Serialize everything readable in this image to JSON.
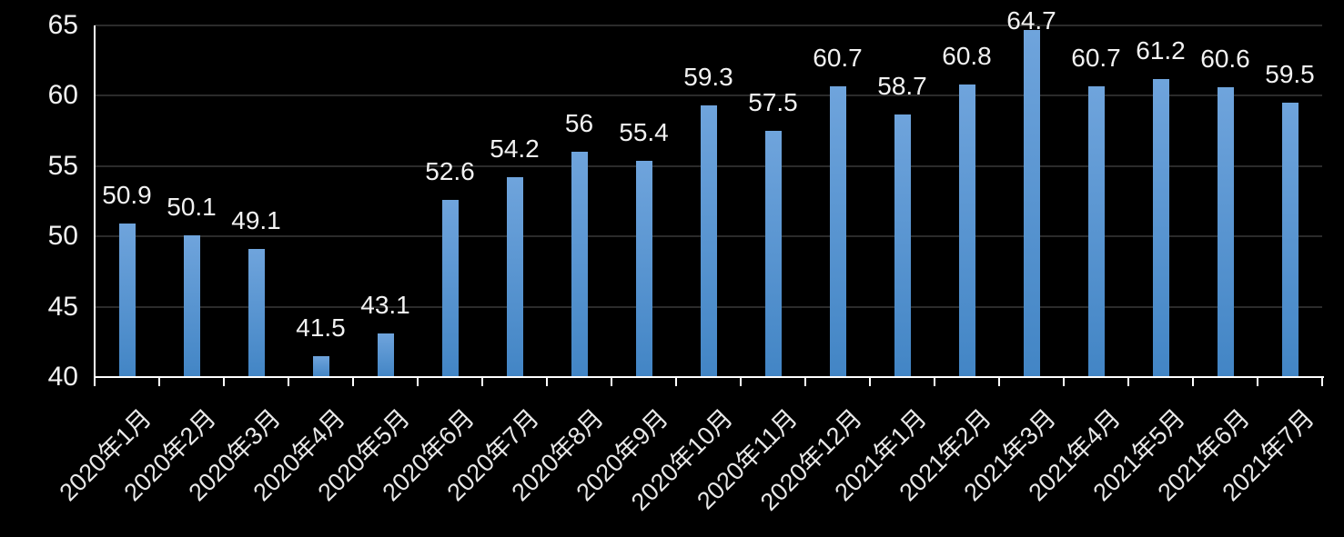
{
  "chart_data": {
    "type": "bar",
    "title": "",
    "xlabel": "",
    "ylabel": "",
    "categories": [
      "2020年1月",
      "2020年2月",
      "2020年3月",
      "2020年4月",
      "2020年5月",
      "2020年6月",
      "2020年7月",
      "2020年8月",
      "2020年9月",
      "2020年10月",
      "2020年11月",
      "2020年12月",
      "2021年1月",
      "2021年2月",
      "2021年3月",
      "2021年4月",
      "2021年5月",
      "2021年6月",
      "2021年7月"
    ],
    "values": [
      50.9,
      50.1,
      49.1,
      41.5,
      43.1,
      52.6,
      54.2,
      56,
      55.4,
      59.3,
      57.5,
      60.7,
      58.7,
      60.8,
      64.7,
      60.7,
      61.2,
      60.6,
      59.5
    ],
    "value_labels": [
      "50.9",
      "50.1",
      "49.1",
      "41.5",
      "43.1",
      "52.6",
      "54.2",
      "56",
      "55.4",
      "59.3",
      "57.5",
      "60.7",
      "58.7",
      "60.8",
      "64.7",
      "60.7",
      "61.2",
      "60.6",
      "59.5"
    ],
    "ylim": [
      40,
      65
    ],
    "yticks": [
      40,
      45,
      50,
      55,
      60,
      65
    ],
    "grid": true,
    "legend": false,
    "bar_value_labels_shown": true,
    "x_label_rotation_deg": 45,
    "colors": {
      "background": "#000000",
      "bar_gradient_top": "#6fa4dc",
      "bar_gradient_bottom": "#4285c5",
      "gridline": "#2b2b2b",
      "axis": "#ffffff",
      "text": "#f2f2f2"
    }
  }
}
